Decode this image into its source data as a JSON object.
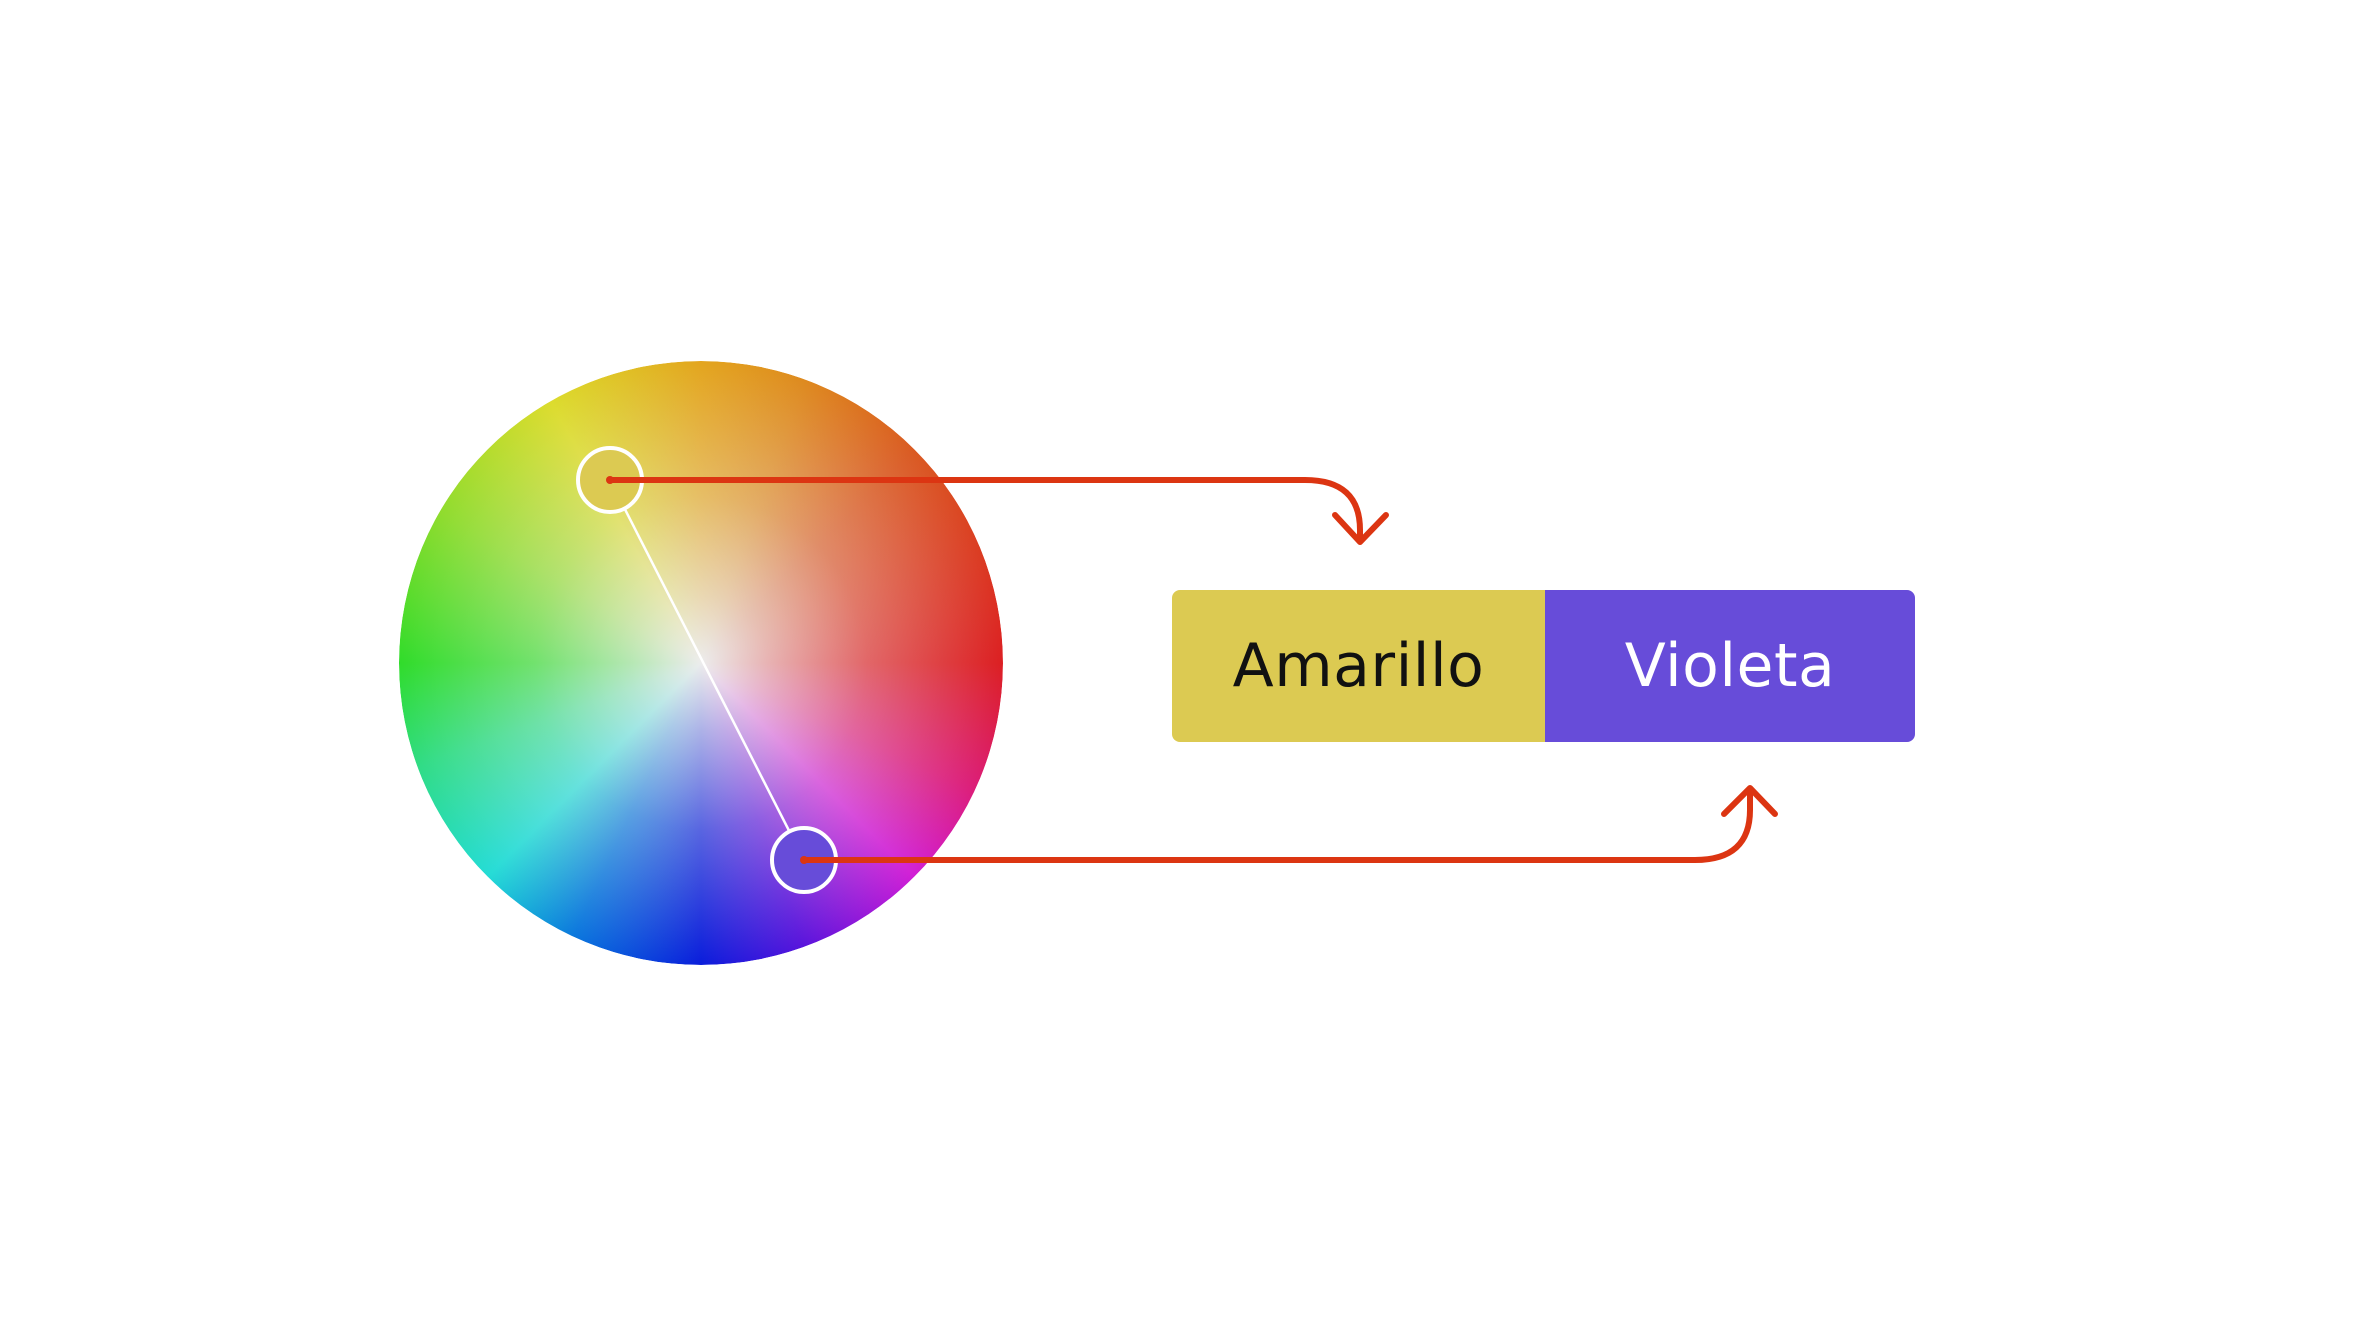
{
  "diagram": {
    "type": "complementary-color-pair",
    "wheel": {
      "picked": [
        "yellow",
        "violet"
      ]
    },
    "swatches": [
      {
        "label": "Amarillo",
        "color": "#dcca52"
      },
      {
        "label": "Violeta",
        "color": "#674cd9"
      }
    ],
    "colors": {
      "arrow": "#dc3512",
      "handle_stroke": "#ffffff",
      "connector": "#ffffff",
      "background": "#ffffff"
    }
  }
}
